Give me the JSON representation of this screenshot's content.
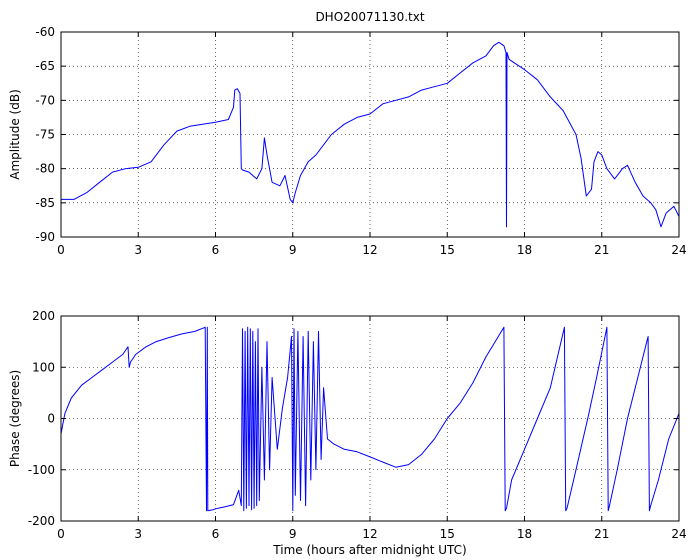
{
  "chart_data": [
    {
      "type": "line",
      "title": "DHO20071130.txt",
      "xlabel": "",
      "ylabel": "Amplitude (dB)",
      "xlim": [
        0,
        24
      ],
      "ylim": [
        -90,
        -60
      ],
      "xticks": [
        0,
        3,
        6,
        9,
        12,
        15,
        18,
        21,
        24
      ],
      "yticks": [
        -90,
        -85,
        -80,
        -75,
        -70,
        -65,
        -60
      ],
      "grid": true,
      "color": "#0000ff",
      "series": [
        {
          "x": [
            0,
            0.5,
            1,
            1.5,
            2,
            2.5,
            3,
            3.5,
            4,
            4.5,
            5,
            5.5,
            6,
            6.5,
            6.7,
            6.75,
            6.85,
            6.95,
            7.0,
            7.05,
            7.3,
            7.6,
            7.8,
            7.9,
            8.0,
            8.2,
            8.5,
            8.7,
            8.9,
            9.0,
            9.1,
            9.3,
            9.6,
            9.9,
            10.2,
            10.5,
            11,
            11.5,
            12,
            12.5,
            13,
            13.5,
            14,
            14.5,
            15,
            15.5,
            16,
            16.5,
            16.8,
            17.0,
            17.2,
            17.28,
            17.3,
            17.32,
            17.4,
            17.6,
            18,
            18.5,
            19,
            19.5,
            20,
            20.2,
            20.4,
            20.6,
            20.7,
            20.85,
            21,
            21.2,
            21.5,
            21.8,
            22,
            22.3,
            22.6,
            22.9,
            23.1,
            23.3,
            23.5,
            23.8,
            24
          ],
          "y": [
            -84.5,
            -84.5,
            -83.5,
            -82,
            -80.5,
            -80,
            -79.8,
            -79,
            -76.5,
            -74.5,
            -73.8,
            -73.5,
            -73.2,
            -72.8,
            -71,
            -68.5,
            -68.3,
            -69,
            -80,
            -80.2,
            -80.5,
            -81.5,
            -80,
            -75.5,
            -78,
            -82,
            -82.5,
            -81,
            -84.5,
            -85,
            -83.5,
            -81,
            -79,
            -78,
            -76.5,
            -75,
            -73.5,
            -72.5,
            -72,
            -70.5,
            -70,
            -69.5,
            -68.5,
            -68,
            -67.5,
            -66,
            -64.5,
            -63.5,
            -62,
            -61.5,
            -62,
            -63,
            -88.5,
            -63,
            -64,
            -64.5,
            -65.5,
            -67,
            -69.5,
            -71.5,
            -75,
            -78.5,
            -84,
            -83,
            -79,
            -77.5,
            -78,
            -80,
            -81.5,
            -80,
            -79.5,
            -82,
            -84,
            -85,
            -86,
            -88.5,
            -86.5,
            -85.5,
            -87
          ]
        }
      ]
    },
    {
      "type": "line",
      "title": "",
      "xlabel": "Time (hours after midnight UTC)",
      "ylabel": "Phase (degrees)",
      "xlim": [
        0,
        24
      ],
      "ylim": [
        -200,
        200
      ],
      "xticks": [
        0,
        3,
        6,
        9,
        12,
        15,
        18,
        21,
        24
      ],
      "yticks": [
        -200,
        -100,
        0,
        100,
        200
      ],
      "grid": true,
      "color": "#0000ff",
      "series": [
        {
          "x": [
            0,
            0.15,
            0.4,
            0.8,
            1.2,
            1.6,
            2.0,
            2.4,
            2.6,
            2.65,
            2.7,
            2.9,
            3.3,
            3.7,
            4.2,
            4.7,
            5.2,
            5.6,
            5.65,
            5.68,
            5.7,
            5.9,
            6.1,
            6.4,
            6.7,
            6.9,
            7.0,
            7.05,
            7.1,
            7.15,
            7.2,
            7.25,
            7.3,
            7.35,
            7.4,
            7.45,
            7.5,
            7.55,
            7.6,
            7.65,
            7.7,
            7.8,
            7.9,
            8.0,
            8.1,
            8.2,
            8.4,
            8.6,
            8.8,
            8.95,
            9.0,
            9.05,
            9.1,
            9.2,
            9.3,
            9.4,
            9.5,
            9.6,
            9.7,
            9.8,
            9.9,
            10.0,
            10.1,
            10.2,
            10.35,
            10.6,
            11.0,
            11.5,
            12,
            12.5,
            13,
            13.5,
            14,
            14.5,
            15,
            15.5,
            16,
            16.5,
            17.2,
            17.25,
            17.3,
            17.5,
            18.0,
            18.5,
            19.0,
            19.55,
            19.6,
            19.65,
            20.0,
            20.5,
            20.8,
            21.2,
            21.25,
            21.3,
            21.6,
            22.0,
            22.4,
            22.8,
            22.85,
            22.9,
            23.2,
            23.6,
            24
          ],
          "y": [
            -30,
            10,
            40,
            65,
            80,
            95,
            110,
            125,
            140,
            100,
            110,
            125,
            140,
            150,
            158,
            165,
            170,
            178,
            -180,
            178,
            -180,
            -178,
            -175,
            -172,
            -168,
            -140,
            -170,
            175,
            -180,
            170,
            -175,
            178,
            -170,
            175,
            -178,
            170,
            -175,
            150,
            -170,
            175,
            -160,
            100,
            -120,
            150,
            -100,
            80,
            -60,
            20,
            80,
            160,
            -180,
            175,
            -150,
            170,
            -160,
            160,
            -170,
            170,
            -120,
            150,
            -100,
            170,
            -80,
            60,
            -40,
            -50,
            -60,
            -65,
            -75,
            -85,
            -95,
            -90,
            -70,
            -40,
            0,
            30,
            70,
            120,
            178,
            -180,
            -175,
            -120,
            -60,
            0,
            60,
            178,
            -180,
            -175,
            -100,
            10,
            80,
            178,
            -180,
            -170,
            -100,
            0,
            80,
            160,
            -180,
            -170,
            -120,
            -40,
            10
          ]
        }
      ]
    }
  ]
}
